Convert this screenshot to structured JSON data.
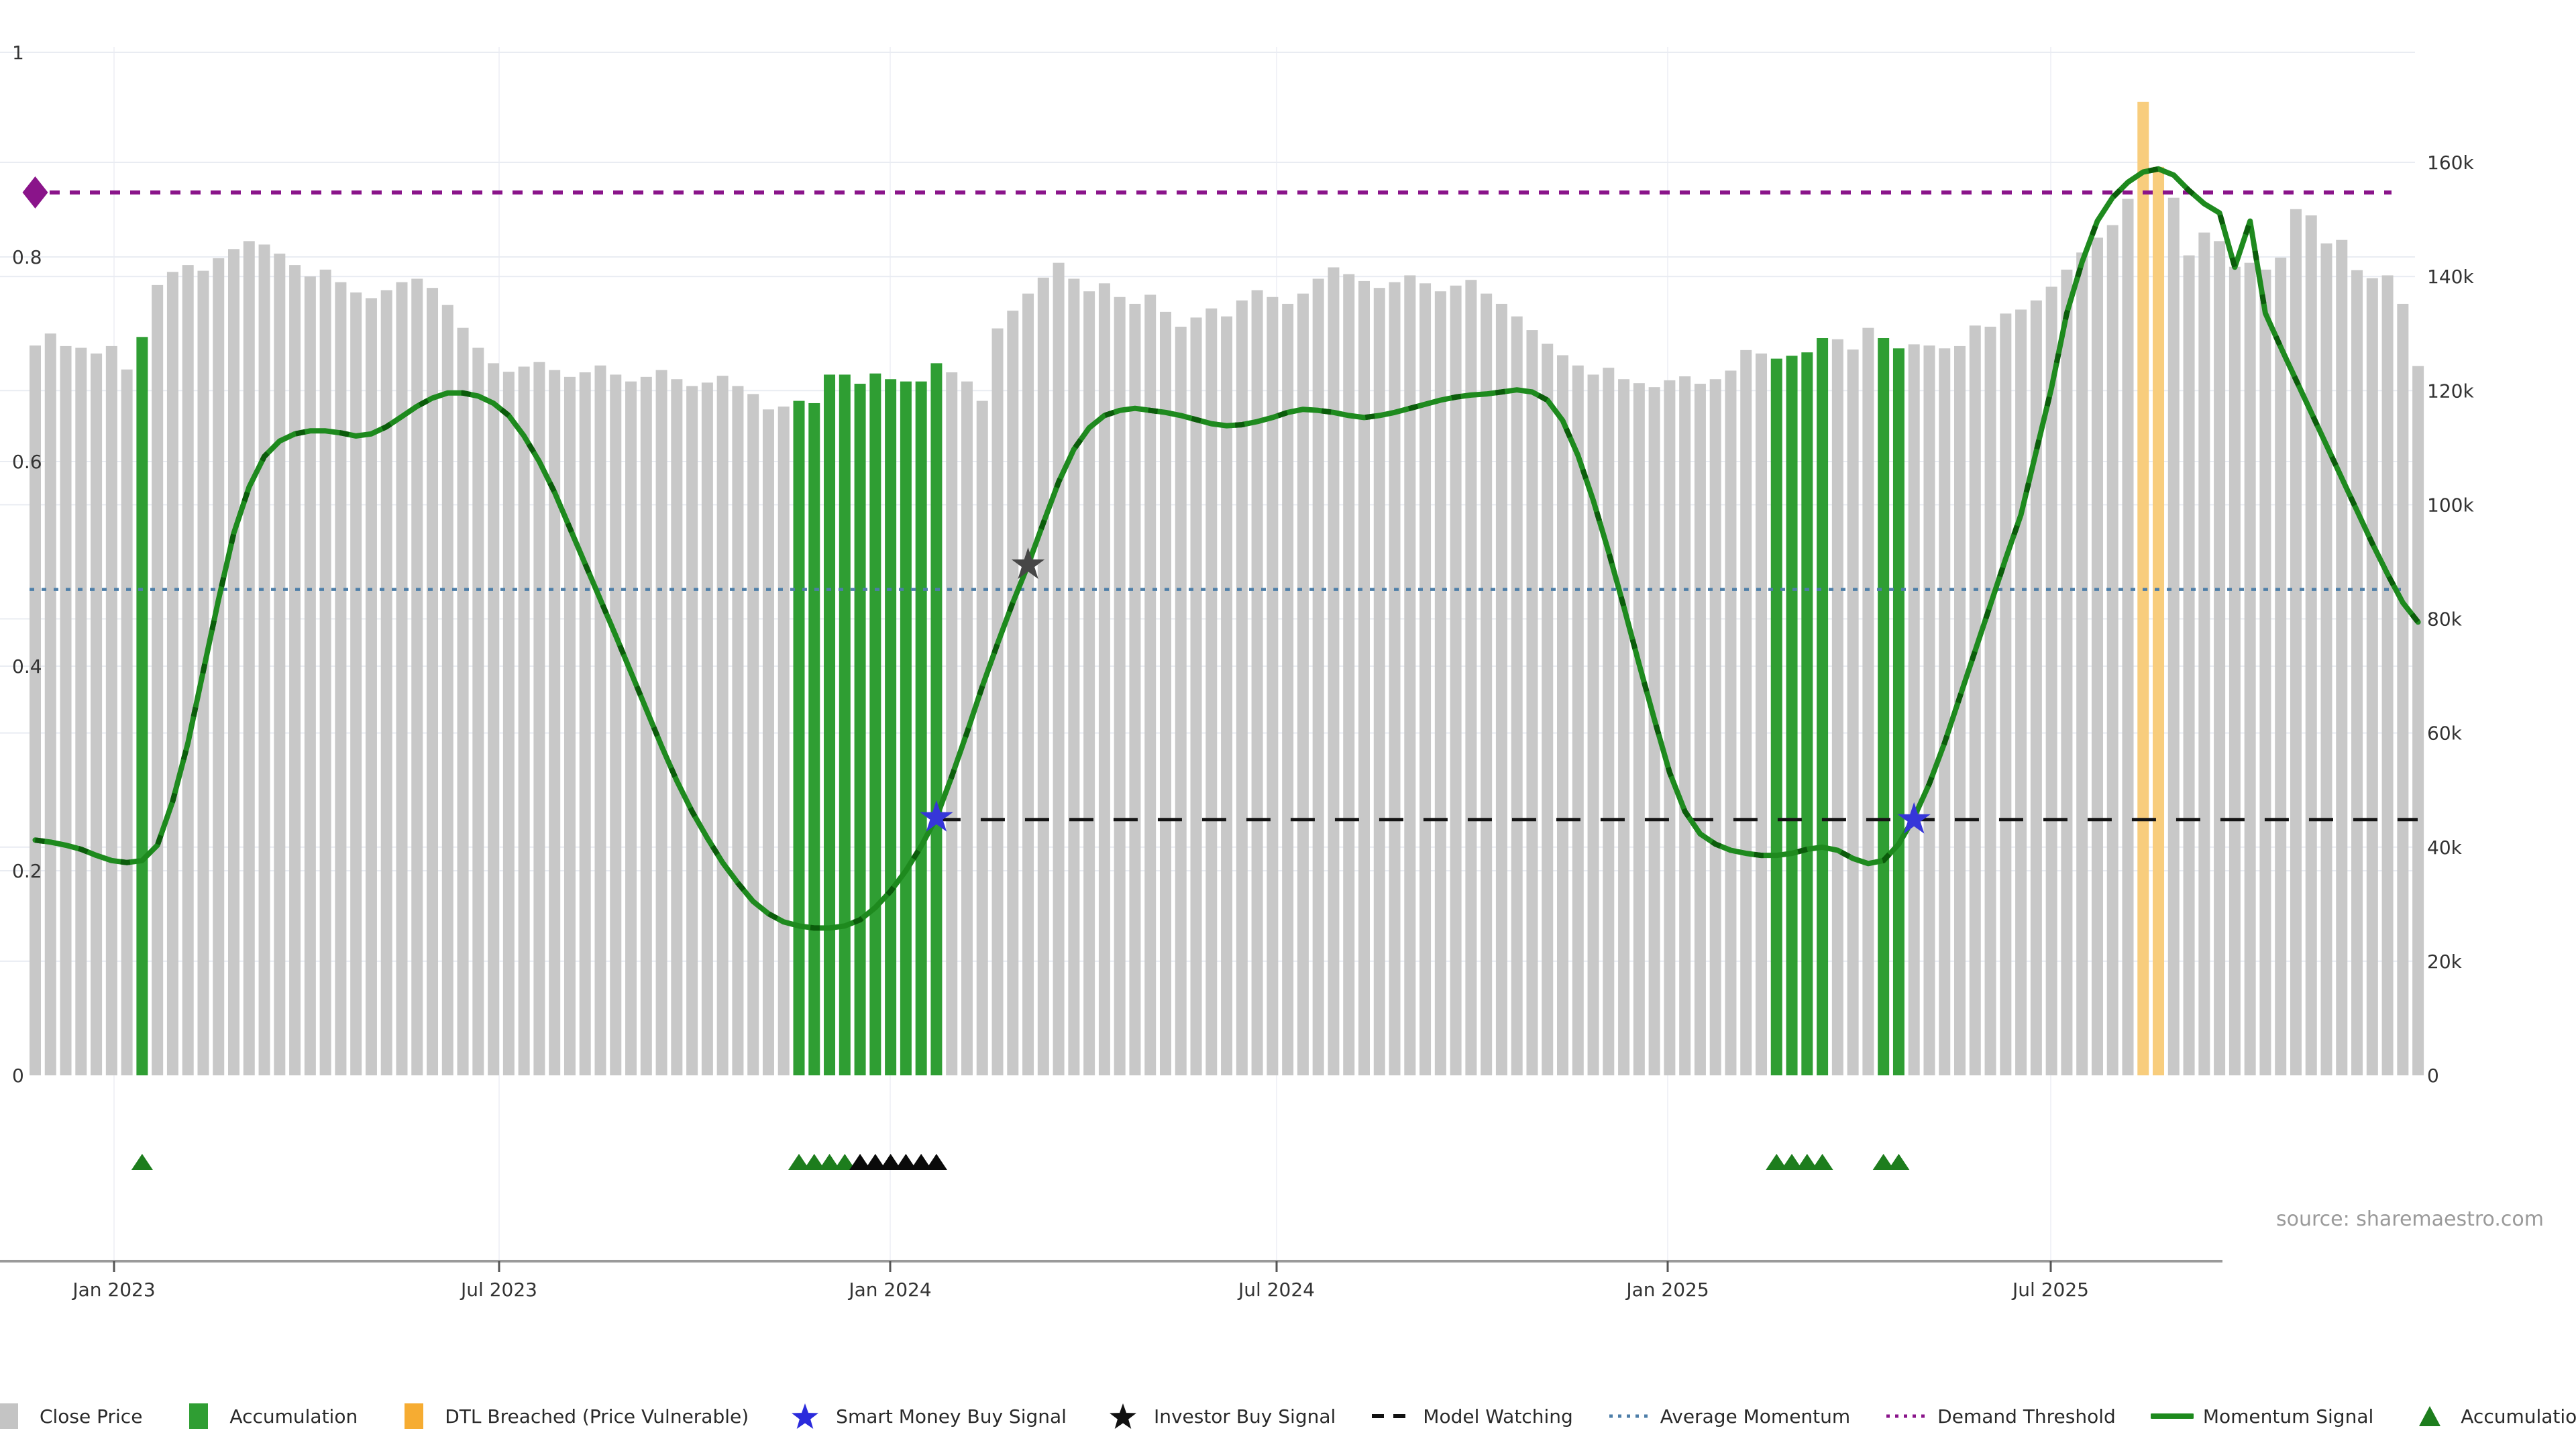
{
  "source": "source: sharemaestro.com",
  "colors": {
    "close_bar": "#c8c8c8",
    "accumulation_bar": "#2f9e33",
    "dtl_bar": "#f8cd7d",
    "dtl_legend": "#f6ac32",
    "momentum_line": "#1e8a1e",
    "momentum_dash": "#0b5c0b",
    "average_momentum": "#4d7ea8",
    "demand_threshold": "#8a148a",
    "model_watching": "#141414",
    "smart_money_star": "#3636d9",
    "investor_star": "#474747",
    "triangle_green": "#1d7d1d",
    "triangle_black": "#0a0a0a",
    "gridline": "#e9ecf2",
    "vgridline": "#f1f2f7",
    "axis_line": "#9a9a9a",
    "tick_text": "#333333"
  },
  "chart_data": {
    "type": "bar+line",
    "title": "",
    "xlabel": "",
    "ylabel_left": "",
    "ylabel_right": "",
    "grid": true,
    "legend_position": "bottom",
    "x_ticks": {
      "labels": [
        "Jan 2023",
        "Jul 2023",
        "Jan 2024",
        "Jul 2024",
        "Jan 2025",
        "Jul 2025"
      ],
      "px": [
        170,
        744,
        1327,
        1903,
        2486,
        3057
      ]
    },
    "left_axis": {
      "range": [
        0,
        1
      ],
      "tick_values": [
        0,
        0.2,
        0.4,
        0.6,
        0.8,
        1
      ],
      "tick_labels": [
        "0",
        "0.2",
        "0.4",
        "0.6",
        "0.8",
        "1"
      ]
    },
    "right_axis": {
      "range_k": [
        0,
        160
      ],
      "tick_values_k": [
        0,
        20,
        40,
        60,
        80,
        100,
        120,
        140,
        160
      ],
      "tick_labels": [
        "0",
        "20k",
        "40k",
        "60k",
        "80k",
        "100k",
        "120k",
        "140k",
        "160k"
      ]
    },
    "weeks": 157,
    "close_k": [
      127.9,
      130.0,
      127.8,
      127.5,
      126.5,
      127.8,
      123.7,
      129.4,
      138.5,
      140.8,
      142.0,
      141.0,
      143.2,
      144.8,
      146.2,
      145.6,
      144.0,
      142.0,
      140.0,
      141.2,
      139.0,
      137.2,
      136.2,
      137.6,
      139.0,
      139.6,
      138.0,
      135.0,
      131.0,
      127.5,
      124.8,
      123.3,
      124.2,
      125.0,
      123.6,
      122.4,
      123.2,
      124.4,
      122.8,
      121.6,
      122.4,
      123.6,
      122.0,
      120.8,
      121.4,
      122.6,
      120.8,
      119.4,
      116.7,
      117.2,
      118.2,
      117.8,
      122.8,
      122.8,
      121.2,
      123.0,
      122.0,
      121.6,
      121.6,
      124.8,
      123.2,
      121.6,
      118.2,
      130.9,
      134.0,
      137.0,
      139.8,
      142.4,
      139.6,
      137.4,
      138.8,
      136.4,
      135.2,
      136.8,
      133.8,
      131.2,
      132.8,
      134.4,
      133.0,
      135.8,
      137.6,
      136.4,
      135.2,
      137.0,
      139.6,
      141.6,
      140.4,
      139.2,
      138.0,
      139.0,
      140.2,
      138.8,
      137.4,
      138.4,
      139.4,
      137.0,
      135.2,
      133.0,
      130.6,
      128.2,
      126.2,
      124.4,
      122.8,
      124.0,
      122.0,
      121.3,
      120.6,
      121.8,
      122.5,
      121.2,
      122.0,
      123.5,
      127.1,
      126.5,
      125.6,
      126.1,
      126.7,
      129.2,
      129.0,
      127.2,
      131.0,
      129.2,
      127.4,
      128.1,
      127.9,
      127.4,
      127.8,
      131.4,
      131.2,
      133.5,
      134.2,
      135.8,
      138.2,
      141.2,
      144.2,
      146.8,
      149.0,
      153.6,
      170.6,
      159.2,
      153.8,
      143.7,
      147.7,
      146.2,
      141.7,
      142.4,
      141.2,
      143.3,
      151.8,
      150.7,
      145.8,
      146.4,
      141.1,
      139.7,
      140.2,
      135.2,
      124.3
    ],
    "momentum": [
      0.23,
      0.228,
      0.225,
      0.221,
      0.215,
      0.21,
      0.208,
      0.21,
      0.225,
      0.268,
      0.325,
      0.395,
      0.465,
      0.53,
      0.575,
      0.605,
      0.62,
      0.627,
      0.63,
      0.63,
      0.628,
      0.625,
      0.627,
      0.634,
      0.644,
      0.654,
      0.662,
      0.667,
      0.667,
      0.664,
      0.657,
      0.645,
      0.625,
      0.6,
      0.57,
      0.535,
      0.5,
      0.465,
      0.43,
      0.394,
      0.358,
      0.322,
      0.288,
      0.258,
      0.232,
      0.208,
      0.188,
      0.17,
      0.158,
      0.15,
      0.146,
      0.144,
      0.144,
      0.146,
      0.152,
      0.164,
      0.18,
      0.2,
      0.224,
      0.252,
      0.292,
      0.335,
      0.38,
      0.422,
      0.462,
      0.499,
      0.54,
      0.58,
      0.612,
      0.633,
      0.645,
      0.65,
      0.652,
      0.65,
      0.648,
      0.645,
      0.641,
      0.637,
      0.635,
      0.636,
      0.639,
      0.643,
      0.648,
      0.651,
      0.65,
      0.648,
      0.645,
      0.643,
      0.645,
      0.648,
      0.652,
      0.656,
      0.66,
      0.663,
      0.665,
      0.666,
      0.668,
      0.67,
      0.668,
      0.66,
      0.64,
      0.606,
      0.562,
      0.512,
      0.458,
      0.402,
      0.348,
      0.296,
      0.258,
      0.236,
      0.226,
      0.22,
      0.217,
      0.215,
      0.215,
      0.217,
      0.221,
      0.223,
      0.22,
      0.212,
      0.207,
      0.21,
      0.226,
      0.252,
      0.285,
      0.325,
      0.37,
      0.415,
      0.46,
      0.505,
      0.548,
      0.61,
      0.672,
      0.745,
      0.795,
      0.835,
      0.858,
      0.873,
      0.883,
      0.886,
      0.88,
      0.865,
      0.852,
      0.843,
      0.79,
      0.835,
      0.745,
      0.712,
      0.68,
      0.648,
      0.616,
      0.584,
      0.552,
      0.52,
      0.49,
      0.462,
      0.443
    ],
    "accumulation_weeks": [
      7,
      50,
      51,
      52,
      53,
      54,
      55,
      56,
      57,
      58,
      59,
      114,
      115,
      116,
      117,
      121,
      122
    ],
    "dtl_breached_weeks": [
      138,
      139
    ],
    "average_momentum": 0.475,
    "demand_threshold": 0.863,
    "model_watching": {
      "value": 0.25,
      "start_week": 59
    },
    "signals": {
      "smart_money_stars": [
        {
          "week": 59,
          "y": 0.252
        },
        {
          "week": 123,
          "y": 0.25
        }
      ],
      "investor_stars": [
        {
          "week": 65,
          "y": 0.499
        }
      ],
      "demand_diamond": {
        "week": 0,
        "y": 0.863
      }
    },
    "triangles": {
      "green_weeks": [
        7,
        50,
        51,
        52,
        53,
        114,
        115,
        116,
        117,
        121,
        122
      ],
      "black_weeks": [
        54,
        55,
        56,
        57,
        58,
        59
      ]
    }
  },
  "legend": {
    "items": [
      {
        "label": "Close Price",
        "swatch": "rect",
        "color": "#c4c4c4"
      },
      {
        "label": "Accumulation",
        "swatch": "rect",
        "color": "#2f9e33"
      },
      {
        "label": "DTL Breached (Price Vulnerable)",
        "swatch": "rect",
        "color": "#f6ac32"
      },
      {
        "label": "Smart Money Buy Signal",
        "swatch": "star",
        "color": "#2b2bdc"
      },
      {
        "label": "Investor Buy Signal",
        "swatch": "star",
        "color": "#111111"
      },
      {
        "label": "Model Watching",
        "swatch": "dash",
        "color": "#111111"
      },
      {
        "label": "Average Momentum",
        "swatch": "dots",
        "color": "#4d7ea8"
      },
      {
        "label": "Demand Threshold",
        "swatch": "dots",
        "color": "#8a148a"
      },
      {
        "label": "Momentum Signal",
        "swatch": "line",
        "color": "#1d8a1d"
      },
      {
        "label": "Accumulation",
        "swatch": "triangle",
        "color": "#1d7d1d"
      }
    ]
  }
}
